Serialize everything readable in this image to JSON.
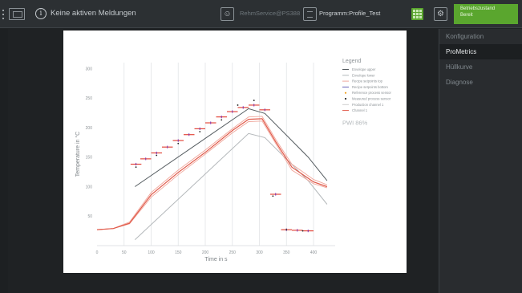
{
  "topbar": {
    "message": "Keine aktiven Meldungen",
    "user": "RehmService@PS388",
    "program": "Programm:Profile_Test",
    "status_line1": "Betriebszustand",
    "status_line2": "Bereit",
    "icons": [
      "menu-icon",
      "screen-icon",
      "info-icon",
      "user-icon",
      "program-icon",
      "grid-icon",
      "settings-icon"
    ]
  },
  "sidebar": {
    "items": [
      {
        "label": "Konfiguration",
        "active": false
      },
      {
        "label": "ProMetrics",
        "active": true
      },
      {
        "label": "Hüllkurve",
        "active": false
      },
      {
        "label": "Diagnose",
        "active": false
      }
    ]
  },
  "colors": {
    "status_green": "#5aa62e",
    "envelope_upper": "#555c60",
    "envelope_lower": "#b4b8bb",
    "setpoint_top": "#e06a5a",
    "setpoint_bottom": "#6a62b8",
    "channel": "#e15a4a",
    "production": "#cfcfcf"
  },
  "chart_data": {
    "type": "line",
    "xlabel": "Time in s",
    "ylabel": "Temperature in °C",
    "xlim": [
      0,
      440
    ],
    "ylim": [
      0,
      310
    ],
    "x_ticks": [
      0,
      50,
      100,
      150,
      200,
      250,
      300,
      350,
      400
    ],
    "y_ticks": [
      50,
      100,
      150,
      200,
      250,
      300
    ],
    "grid": "vertical",
    "legend": {
      "title": "Legend",
      "placement": "right",
      "entries": [
        "Envelope upper",
        "Envelope lower",
        "Recipe setpoints top",
        "Recipe setpoints bottom",
        "Reference process sensor",
        "Measured process sensor",
        "Production channel 1",
        "Channel 1"
      ]
    },
    "pwi_label": "PWI 86%",
    "series": [
      {
        "name": "Envelope upper",
        "x": [
          70,
          280,
          310,
          390,
          425
        ],
        "y": [
          100,
          232,
          224,
          150,
          110
        ]
      },
      {
        "name": "Envelope lower",
        "x": [
          70,
          280,
          310,
          390,
          425
        ],
        "y": [
          10,
          190,
          183,
          110,
          70
        ]
      },
      {
        "name": "Recipe setpoints top",
        "x": [
          0,
          30,
          60,
          100,
          150,
          200,
          250,
          280,
          305,
          330,
          360,
          400,
          425
        ],
        "y": [
          27,
          29,
          40,
          90,
          128,
          162,
          198,
          218,
          219,
          180,
          138,
          112,
          103
        ]
      },
      {
        "name": "Recipe setpoints bottom",
        "x": [
          0,
          30,
          60,
          100,
          150,
          200,
          250,
          280,
          305,
          330,
          360,
          400,
          425
        ],
        "y": [
          27,
          29,
          37,
          82,
          120,
          155,
          191,
          210,
          211,
          173,
          128,
          105,
          98
        ]
      },
      {
        "name": "Channel 1",
        "x": [
          0,
          30,
          60,
          100,
          150,
          200,
          250,
          280,
          305,
          330,
          360,
          400,
          425
        ],
        "y": [
          27,
          29,
          38,
          86,
          124,
          158,
          195,
          214,
          215,
          176,
          133,
          108,
          100
        ]
      }
    ],
    "setpoint_markers": [
      {
        "x_start": 62,
        "x_end": 82,
        "y": 138
      },
      {
        "x_start": 80,
        "x_end": 100,
        "y": 147
      },
      {
        "x_start": 100,
        "x_end": 120,
        "y": 157
      },
      {
        "x_start": 120,
        "x_end": 140,
        "y": 167
      },
      {
        "x_start": 140,
        "x_end": 160,
        "y": 178
      },
      {
        "x_start": 160,
        "x_end": 180,
        "y": 188
      },
      {
        "x_start": 180,
        "x_end": 200,
        "y": 198
      },
      {
        "x_start": 200,
        "x_end": 220,
        "y": 208
      },
      {
        "x_start": 220,
        "x_end": 240,
        "y": 218
      },
      {
        "x_start": 240,
        "x_end": 260,
        "y": 227
      },
      {
        "x_start": 260,
        "x_end": 280,
        "y": 234
      },
      {
        "x_start": 280,
        "x_end": 300,
        "y": 238
      },
      {
        "x_start": 300,
        "x_end": 320,
        "y": 230
      },
      {
        "x_start": 320,
        "x_end": 340,
        "y": 87
      },
      {
        "x_start": 340,
        "x_end": 360,
        "y": 27
      },
      {
        "x_start": 360,
        "x_end": 380,
        "y": 26
      },
      {
        "x_start": 380,
        "x_end": 400,
        "y": 25
      }
    ],
    "measured_points": [
      {
        "x": 72,
        "y": 133
      },
      {
        "x": 110,
        "y": 153
      },
      {
        "x": 150,
        "y": 173
      },
      {
        "x": 190,
        "y": 193
      },
      {
        "x": 230,
        "y": 213
      },
      {
        "x": 260,
        "y": 238
      },
      {
        "x": 290,
        "y": 246
      },
      {
        "x": 325,
        "y": 84
      },
      {
        "x": 350,
        "y": 27
      },
      {
        "x": 380,
        "y": 25
      }
    ]
  }
}
